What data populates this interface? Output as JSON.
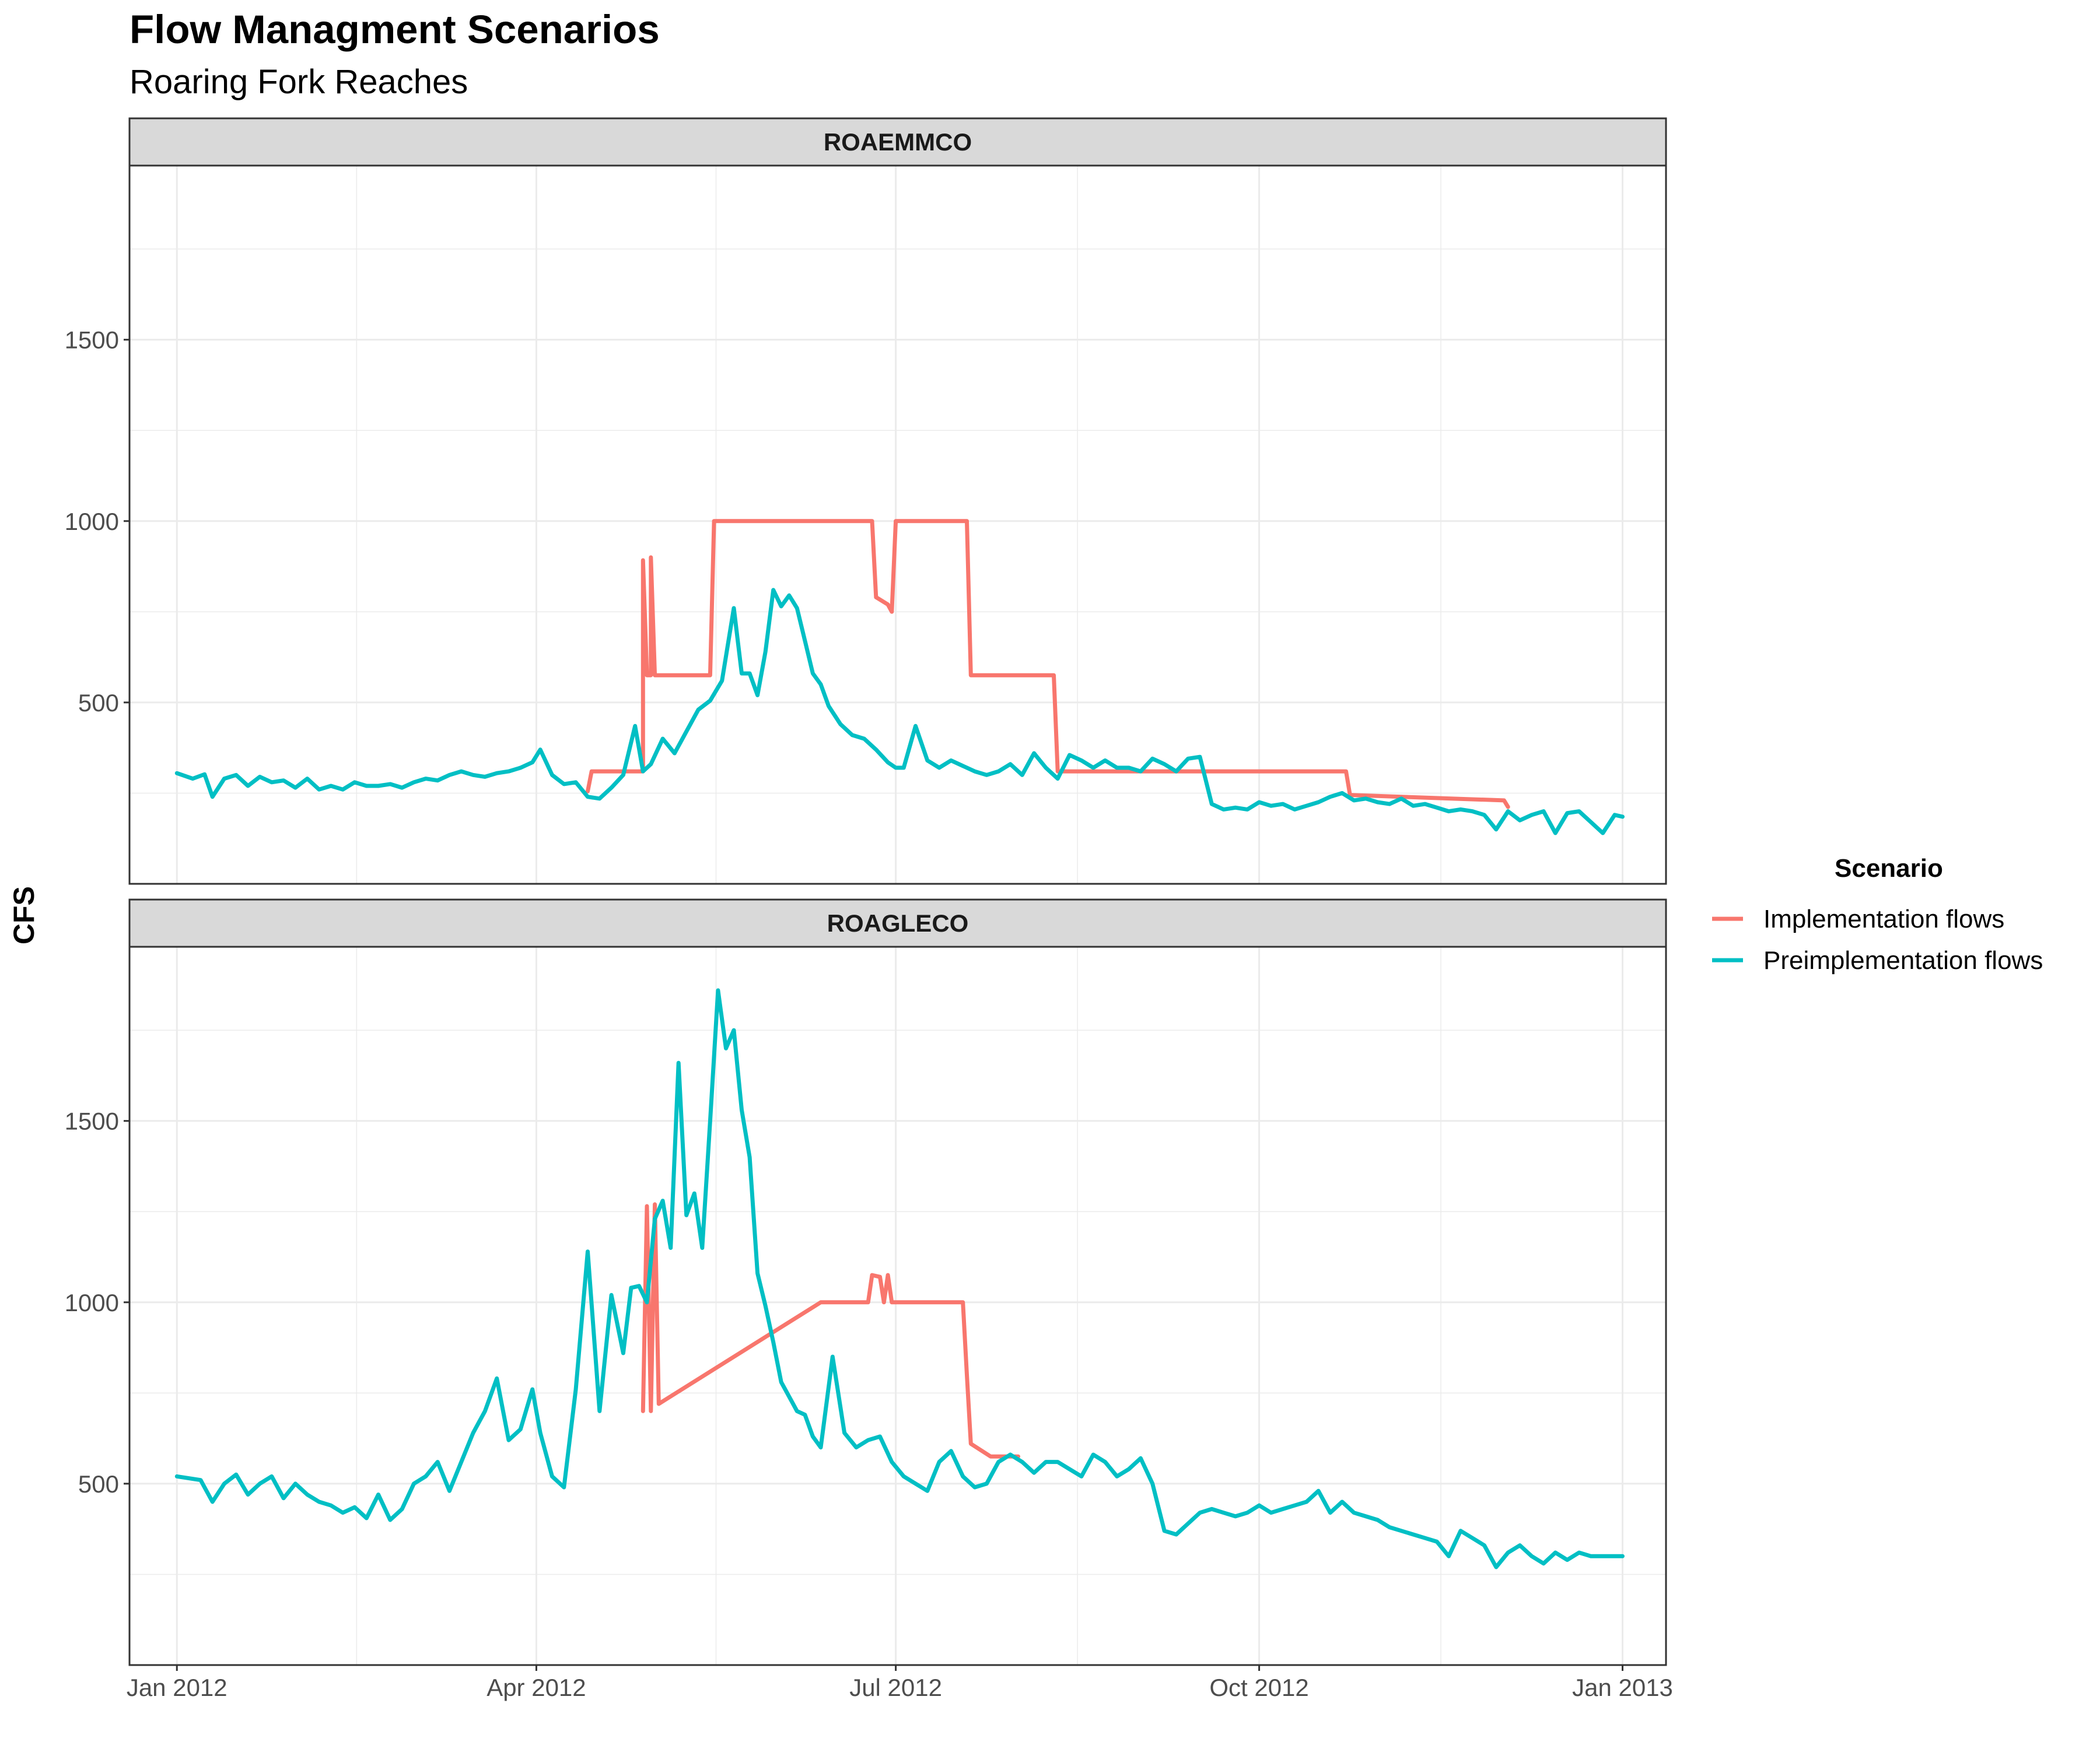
{
  "chart_data": {
    "type": "line",
    "title": "Flow Managment Scenarios",
    "subtitle": "Roaring Fork Reaches",
    "ylabel": "CFS",
    "xlabel": "",
    "x_ticks": [
      {
        "date": "2012-01-01",
        "label": "Jan 2012"
      },
      {
        "date": "2012-04-01",
        "label": "Apr 2012"
      },
      {
        "date": "2012-07-01",
        "label": "Jul 2012"
      },
      {
        "date": "2012-10-01",
        "label": "Oct 2012"
      },
      {
        "date": "2013-01-01",
        "label": "Jan 2013"
      }
    ],
    "xlim": [
      "2011-12-20",
      "2013-01-12"
    ],
    "ylim": [
      0,
      1980
    ],
    "y_ticks": [
      500,
      1000,
      1500
    ],
    "grid": true,
    "legend": {
      "title": "Scenario",
      "position": "right",
      "entries": [
        {
          "name": "Implementation flows",
          "color": "#F8766D"
        },
        {
          "name": "Preimplementation flows",
          "color": "#00BFC4"
        }
      ]
    },
    "panels": [
      {
        "label": "ROAEMMCO",
        "series": [
          {
            "name": "Implementation flows",
            "color": "#F8766D",
            "x": [
              "2012-04-14",
              "2012-04-15",
              "2012-04-28",
              "2012-04-28",
              "2012-04-29",
              "2012-04-29",
              "2012-04-30",
              "2012-04-30",
              "2012-05-01",
              "2012-05-01",
              "2012-05-02",
              "2012-05-15",
              "2012-05-16",
              "2012-06-25",
              "2012-06-26",
              "2012-06-29",
              "2012-06-30",
              "2012-07-01",
              "2012-07-02",
              "2012-07-03",
              "2012-07-19",
              "2012-07-20",
              "2012-08-09",
              "2012-08-10",
              "2012-08-11",
              "2012-10-23",
              "2012-10-24",
              "2012-12-02",
              "2012-12-03"
            ],
            "y": [
              255,
              310,
              310,
              892,
              575,
              575,
              575,
              900,
              575,
              575,
              575,
              575,
              1000,
              1000,
              790,
              770,
              750,
              1000,
              1000,
              1000,
              1000,
              575,
              575,
              575,
              310,
              310,
              245,
              230,
              212
            ]
          },
          {
            "name": "Preimplementation flows",
            "color": "#00BFC4",
            "x": [
              "2012-01-01",
              "2012-01-05",
              "2012-01-08",
              "2012-01-10",
              "2012-01-13",
              "2012-01-16",
              "2012-01-19",
              "2012-01-22",
              "2012-01-25",
              "2012-01-28",
              "2012-01-31",
              "2012-02-03",
              "2012-02-06",
              "2012-02-09",
              "2012-02-12",
              "2012-02-15",
              "2012-02-18",
              "2012-02-21",
              "2012-02-24",
              "2012-02-27",
              "2012-03-01",
              "2012-03-04",
              "2012-03-07",
              "2012-03-10",
              "2012-03-13",
              "2012-03-16",
              "2012-03-19",
              "2012-03-22",
              "2012-03-25",
              "2012-03-28",
              "2012-03-31",
              "2012-04-02",
              "2012-04-05",
              "2012-04-08",
              "2012-04-11",
              "2012-04-14",
              "2012-04-17",
              "2012-04-20",
              "2012-04-23",
              "2012-04-26",
              "2012-04-28",
              "2012-04-30",
              "2012-05-03",
              "2012-05-06",
              "2012-05-09",
              "2012-05-12",
              "2012-05-15",
              "2012-05-18",
              "2012-05-21",
              "2012-05-23",
              "2012-05-25",
              "2012-05-27",
              "2012-05-29",
              "2012-05-31",
              "2012-06-02",
              "2012-06-04",
              "2012-06-06",
              "2012-06-08",
              "2012-06-10",
              "2012-06-12",
              "2012-06-14",
              "2012-06-17",
              "2012-06-20",
              "2012-06-23",
              "2012-06-26",
              "2012-06-29",
              "2012-07-01",
              "2012-07-03",
              "2012-07-06",
              "2012-07-09",
              "2012-07-12",
              "2012-07-15",
              "2012-07-18",
              "2012-07-21",
              "2012-07-24",
              "2012-07-27",
              "2012-07-30",
              "2012-08-02",
              "2012-08-05",
              "2012-08-08",
              "2012-08-11",
              "2012-08-14",
              "2012-08-17",
              "2012-08-20",
              "2012-08-23",
              "2012-08-26",
              "2012-08-29",
              "2012-09-01",
              "2012-09-04",
              "2012-09-07",
              "2012-09-10",
              "2012-09-13",
              "2012-09-16",
              "2012-09-19",
              "2012-09-22",
              "2012-09-25",
              "2012-09-28",
              "2012-10-01",
              "2012-10-04",
              "2012-10-07",
              "2012-10-10",
              "2012-10-13",
              "2012-10-16",
              "2012-10-19",
              "2012-10-22",
              "2012-10-25",
              "2012-10-28",
              "2012-10-31",
              "2012-11-03",
              "2012-11-06",
              "2012-11-09",
              "2012-11-12",
              "2012-11-15",
              "2012-11-18",
              "2012-11-21",
              "2012-11-24",
              "2012-11-27",
              "2012-11-30",
              "2012-12-03",
              "2012-12-06",
              "2012-12-09",
              "2012-12-12",
              "2012-12-15",
              "2012-12-18",
              "2012-12-21",
              "2012-12-24",
              "2012-12-27",
              "2012-12-30",
              "2013-01-01"
            ],
            "y": [
              305,
              290,
              302,
              240,
              290,
              300,
              270,
              295,
              280,
              285,
              265,
              290,
              260,
              270,
              260,
              280,
              270,
              270,
              275,
              265,
              280,
              290,
              285,
              300,
              310,
              300,
              295,
              305,
              310,
              320,
              335,
              370,
              300,
              275,
              280,
              240,
              235,
              265,
              300,
              435,
              310,
              330,
              400,
              360,
              420,
              480,
              505,
              560,
              760,
              580,
              580,
              520,
              640,
              810,
              765,
              795,
              760,
              670,
              580,
              550,
              490,
              440,
              410,
              400,
              370,
              335,
              320,
              320,
              435,
              340,
              320,
              340,
              325,
              310,
              300,
              310,
              330,
              300,
              360,
              320,
              290,
              355,
              340,
              320,
              340,
              320,
              320,
              310,
              345,
              330,
              310,
              345,
              350,
              220,
              205,
              210,
              205,
              225,
              215,
              220,
              205,
              215,
              225,
              240,
              250,
              230,
              235,
              225,
              220,
              235,
              215,
              220,
              210,
              200,
              205,
              200,
              190,
              150,
              200,
              175,
              190,
              200,
              140,
              195,
              200,
              170,
              140,
              190,
              185
            ]
          }
        ]
      },
      {
        "label": "ROAGLECO",
        "series": [
          {
            "name": "Implementation flows",
            "color": "#F8766D",
            "x": [
              "2012-04-28",
              "2012-04-29",
              "2012-04-30",
              "2012-05-01",
              "2012-05-02",
              "2012-06-12",
              "2012-06-24",
              "2012-06-25",
              "2012-06-27",
              "2012-06-28",
              "2012-06-29",
              "2012-06-30",
              "2012-07-01",
              "2012-07-18",
              "2012-07-19",
              "2012-07-20",
              "2012-07-25",
              "2012-07-26",
              "2012-08-01"
            ],
            "y": [
              700,
              1265,
              700,
              1270,
              720,
              1000,
              1000,
              1075,
              1070,
              1000,
              1075,
              1000,
              1000,
              1000,
              800,
              610,
              575,
              575,
              575
            ]
          },
          {
            "name": "Preimplementation flows",
            "color": "#00BFC4",
            "x": [
              "2012-01-01",
              "2012-01-04",
              "2012-01-07",
              "2012-01-10",
              "2012-01-13",
              "2012-01-16",
              "2012-01-19",
              "2012-01-22",
              "2012-01-25",
              "2012-01-28",
              "2012-01-31",
              "2012-02-03",
              "2012-02-06",
              "2012-02-09",
              "2012-02-12",
              "2012-02-15",
              "2012-02-18",
              "2012-02-21",
              "2012-02-24",
              "2012-02-27",
              "2012-03-01",
              "2012-03-04",
              "2012-03-07",
              "2012-03-10",
              "2012-03-13",
              "2012-03-16",
              "2012-03-19",
              "2012-03-22",
              "2012-03-25",
              "2012-03-28",
              "2012-03-31",
              "2012-04-02",
              "2012-04-05",
              "2012-04-08",
              "2012-04-11",
              "2012-04-14",
              "2012-04-17",
              "2012-04-20",
              "2012-04-23",
              "2012-04-25",
              "2012-04-27",
              "2012-04-29",
              "2012-05-01",
              "2012-05-03",
              "2012-05-05",
              "2012-05-07",
              "2012-05-09",
              "2012-05-11",
              "2012-05-13",
              "2012-05-15",
              "2012-05-17",
              "2012-05-19",
              "2012-05-21",
              "2012-05-23",
              "2012-05-25",
              "2012-05-27",
              "2012-05-29",
              "2012-05-31",
              "2012-06-02",
              "2012-06-04",
              "2012-06-06",
              "2012-06-08",
              "2012-06-10",
              "2012-06-12",
              "2012-06-15",
              "2012-06-18",
              "2012-06-21",
              "2012-06-24",
              "2012-06-27",
              "2012-06-30",
              "2012-07-03",
              "2012-07-06",
              "2012-07-09",
              "2012-07-12",
              "2012-07-15",
              "2012-07-18",
              "2012-07-21",
              "2012-07-24",
              "2012-07-27",
              "2012-07-30",
              "2012-08-02",
              "2012-08-05",
              "2012-08-08",
              "2012-08-11",
              "2012-08-14",
              "2012-08-17",
              "2012-08-20",
              "2012-08-23",
              "2012-08-26",
              "2012-08-29",
              "2012-09-01",
              "2012-09-04",
              "2012-09-07",
              "2012-09-10",
              "2012-09-13",
              "2012-09-16",
              "2012-09-19",
              "2012-09-22",
              "2012-09-25",
              "2012-09-28",
              "2012-10-01",
              "2012-10-04",
              "2012-10-07",
              "2012-10-10",
              "2012-10-13",
              "2012-10-16",
              "2012-10-19",
              "2012-10-22",
              "2012-10-25",
              "2012-10-28",
              "2012-10-31",
              "2012-11-03",
              "2012-11-06",
              "2012-11-09",
              "2012-11-12",
              "2012-11-15",
              "2012-11-18",
              "2012-11-21",
              "2012-11-24",
              "2012-11-27",
              "2012-11-30",
              "2012-12-03",
              "2012-12-06",
              "2012-12-09",
              "2012-12-12",
              "2012-12-15",
              "2012-12-18",
              "2012-12-21",
              "2012-12-24",
              "2012-12-27",
              "2012-12-30",
              "2013-01-01"
            ],
            "y": [
              520,
              515,
              510,
              450,
              500,
              525,
              470,
              500,
              520,
              460,
              500,
              470,
              450,
              440,
              420,
              435,
              405,
              470,
              400,
              430,
              500,
              520,
              560,
              480,
              560,
              640,
              700,
              790,
              620,
              650,
              760,
              640,
              520,
              490,
              760,
              1140,
              700,
              1020,
              860,
              1040,
              1045,
              1000,
              1230,
              1280,
              1150,
              1660,
              1240,
              1300,
              1150,
              1500,
              1860,
              1700,
              1750,
              1530,
              1400,
              1080,
              990,
              890,
              780,
              740,
              700,
              690,
              630,
              600,
              850,
              640,
              600,
              620,
              630,
              560,
              520,
              500,
              480,
              560,
              590,
              520,
              490,
              500,
              560,
              580,
              560,
              530,
              560,
              560,
              540,
              520,
              580,
              560,
              520,
              540,
              570,
              500,
              370,
              360,
              390,
              420,
              430,
              420,
              410,
              420,
              440,
              420,
              430,
              440,
              450,
              480,
              420,
              450,
              420,
              410,
              400,
              380,
              370,
              360,
              350,
              340,
              300,
              370,
              350,
              330,
              270,
              310,
              330,
              300,
              280,
              310,
              290,
              310,
              300,
              300,
              300,
              300
            ]
          }
        ]
      }
    ]
  }
}
